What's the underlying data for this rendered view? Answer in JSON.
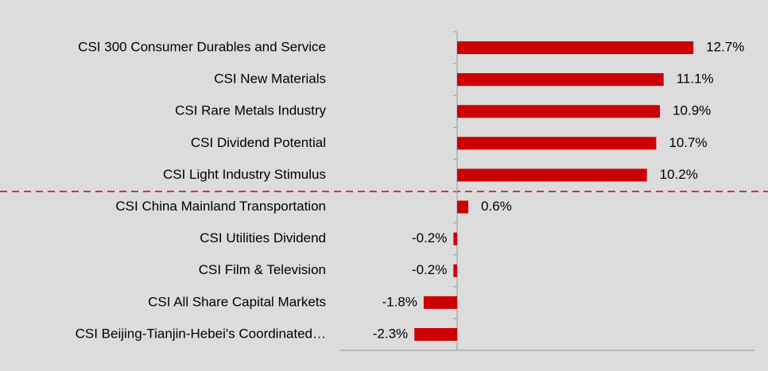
{
  "chart_data": {
    "type": "bar",
    "orientation": "horizontal",
    "categories": [
      "CSI 300 Consumer Durables and Service",
      "CSI New Materials",
      "CSI Rare Metals Industry",
      "CSI Dividend Potential",
      "CSI Light Industry Stimulus",
      "CSI China Mainland Transportation",
      "CSI Utilities Dividend",
      "CSI Film & Television",
      "CSI All Share Capital Markets",
      "CSI Beijing-Tianjin-Hebei's Coordinated…"
    ],
    "values": [
      12.7,
      11.1,
      10.9,
      10.7,
      10.2,
      0.6,
      -0.2,
      -0.2,
      -1.8,
      -2.3
    ],
    "value_labels": [
      "12.7%",
      "11.1%",
      "10.9%",
      "10.7%",
      "10.2%",
      "0.6%",
      "-0.2%",
      "-0.2%",
      "-1.8%",
      "-2.3%"
    ],
    "color": "#cc0000",
    "xlim": [
      -6.3,
      16
    ]
  }
}
